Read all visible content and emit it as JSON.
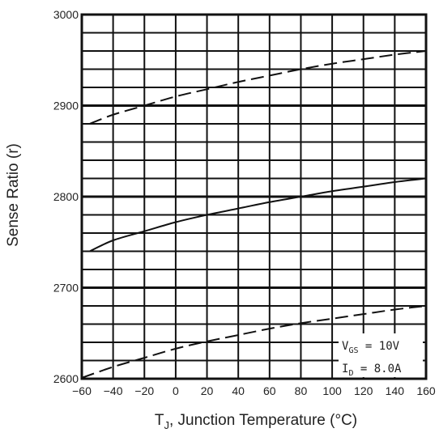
{
  "chart_data": {
    "type": "line",
    "xlabel": "T₁, Junction Temperature (°C)",
    "xlabel_main": "T",
    "xlabel_sub": "J",
    "xlabel_rest": ", Junction Temperature (°C)",
    "ylabel": "Sense Ratio (r)",
    "xlim": [
      -60,
      160
    ],
    "ylim": [
      2600,
      3000
    ],
    "x_ticks": [
      -60,
      -40,
      -20,
      0,
      20,
      40,
      60,
      80,
      100,
      120,
      140,
      160
    ],
    "x_tick_labels": [
      "−60",
      "−40",
      "−20",
      "0",
      "20",
      "40",
      "60",
      "80",
      "100",
      "120",
      "140",
      "160"
    ],
    "y_ticks": [
      2600,
      2700,
      2800,
      2900,
      3000
    ],
    "y_tick_labels": [
      "2600",
      "2700",
      "2800",
      "2900",
      "3000"
    ],
    "grid": true,
    "annotation": {
      "line1_main": "V",
      "line1_sub": "GS",
      "line1_rest": " = 10V",
      "line2_main": "I",
      "line2_sub": "D",
      "line2_rest": " = 8.0A"
    },
    "series": [
      {
        "style": "dashed",
        "x": [
          -55,
          -40,
          -20,
          0,
          20,
          40,
          60,
          80,
          100,
          120,
          140,
          160
        ],
        "values": [
          2880,
          2890,
          2900,
          2910,
          2918,
          2926,
          2933,
          2940,
          2946,
          2951,
          2956,
          2960
        ]
      },
      {
        "style": "solid",
        "x": [
          -55,
          -40,
          -20,
          0,
          20,
          40,
          60,
          80,
          100,
          120,
          140,
          160
        ],
        "values": [
          2740,
          2752,
          2762,
          2772,
          2780,
          2787,
          2794,
          2800,
          2806,
          2811,
          2816,
          2820
        ]
      },
      {
        "style": "dashed",
        "x": [
          -60,
          -40,
          -20,
          0,
          20,
          40,
          60,
          80,
          100,
          120,
          140,
          160
        ],
        "values": [
          2601,
          2613,
          2623,
          2633,
          2641,
          2648,
          2655,
          2661,
          2666,
          2671,
          2676,
          2680
        ]
      }
    ]
  }
}
